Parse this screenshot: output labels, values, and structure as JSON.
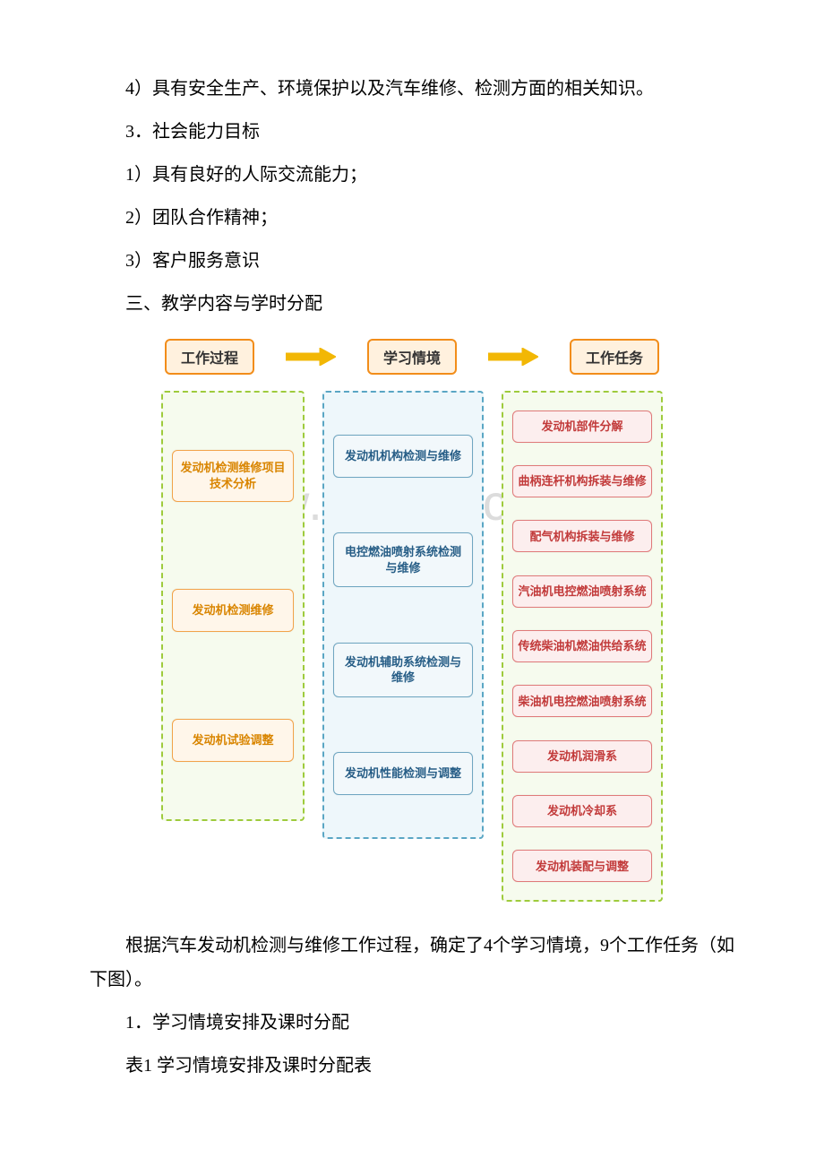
{
  "paragraphs": {
    "p1": "4）具有安全生产、环境保护以及汽车维修、检测方面的相关知识。",
    "p2": "3．社会能力目标",
    "p3": "1）具有良好的人际交流能力；",
    "p4": "2）团队合作精神；",
    "p5": "3）客户服务意识",
    "p6": "三、教学内容与学时分配",
    "p7": "根据汽车发动机检测与维修工作过程，确定了4个学习情境，9个工作任务（如下图）。",
    "p8": "1．学习情境安排及课时分配",
    "p9": "表1 学习情境安排及课时分配表"
  },
  "diagram": {
    "watermark": "www.bdocx.com",
    "headers": {
      "h1": {
        "label": "工作过程",
        "border": "#f28d1a",
        "bg": "#fff1de",
        "text": "#333333"
      },
      "h2": {
        "label": "学习情境",
        "border": "#f28d1a",
        "bg": "#fff1de",
        "text": "#333333"
      },
      "h3": {
        "label": "工作任务",
        "border": "#f28d1a",
        "bg": "#fff1de",
        "text": "#333333"
      }
    },
    "arrow_color": "#f2b705",
    "col1": {
      "dash_color": "#9ecb3c",
      "bg": "#f6fbee",
      "card_border": "#f2a34a",
      "card_bg": "#fff6ea",
      "card_text": "#d98500",
      "items": [
        "发动机检测维修项目技术分析",
        "发动机检测维修",
        "发动机试验调整"
      ]
    },
    "col2": {
      "dash_color": "#5aa6c4",
      "bg": "#eef7fb",
      "card_border": "#6fa6c1",
      "card_bg": "#f2f8fb",
      "card_text": "#265d86",
      "items": [
        "发动机机构检测与维修",
        "电控燃油喷射系统检测与维修",
        "发动机辅助系统检测与维修",
        "发动机性能检测与调整"
      ]
    },
    "col3": {
      "dash_color": "#9ecb3c",
      "bg": "#f6fbee",
      "card_border": "#e07a7a",
      "card_bg": "#fceeee",
      "card_text": "#c23a3a",
      "items": [
        "发动机部件分解",
        "曲柄连杆机构拆装与维修",
        "配气机构拆装与维修",
        "汽油机电控燃油喷射系统",
        "传统柴油机燃油供给系统",
        "柴油机电控燃油喷射系统",
        "发动机润滑系",
        "发动机冷却系",
        "发动机装配与调整"
      ]
    }
  }
}
